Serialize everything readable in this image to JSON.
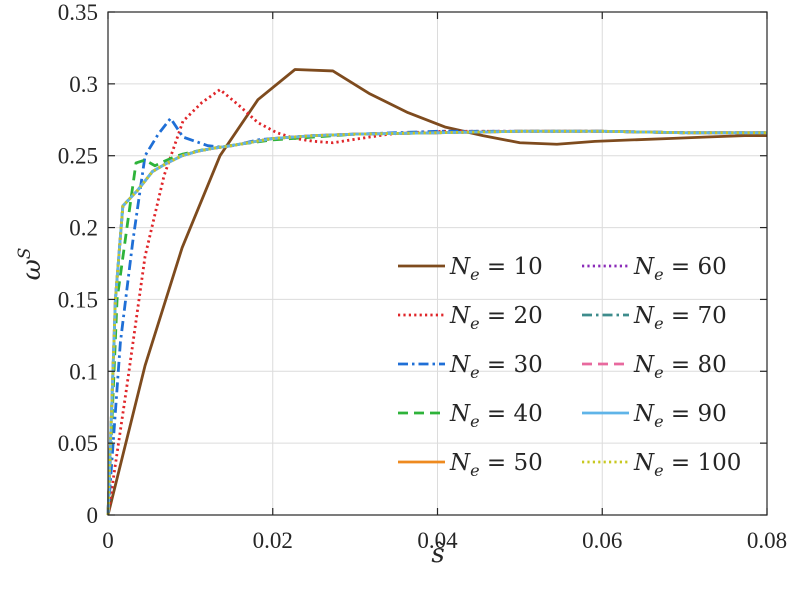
{
  "chart_data": {
    "type": "line",
    "title": "",
    "xlabel": "s̃",
    "ylabel": "ω^S",
    "xlim": [
      0,
      0.08
    ],
    "ylim": [
      0,
      0.35
    ],
    "xticks": [
      0,
      0.02,
      0.04,
      0.06,
      0.08
    ],
    "xtick_labels": [
      "0",
      "0.02",
      "0.04",
      "0.06",
      "0.08"
    ],
    "yticks": [
      0,
      0.05,
      0.1,
      0.15,
      0.2,
      0.25,
      0.3,
      0.35
    ],
    "ytick_labels": [
      "0",
      "0.05",
      "0.1",
      "0.15",
      "0.2",
      "0.25",
      "0.3",
      "0.35"
    ],
    "grid": true,
    "legend_placement": "lower-right",
    "legend_columns": 2,
    "series": [
      {
        "name": "N_e = 10",
        "label_var": "N",
        "label_sub": "e",
        "label_rest": " = 10",
        "color": "#7E4B1E",
        "dash": "solid",
        "x": [
          0,
          0.0045,
          0.009,
          0.0136,
          0.0182,
          0.0227,
          0.0273,
          0.0318,
          0.0364,
          0.0409,
          0.0455,
          0.05,
          0.0545,
          0.0591,
          0.0636,
          0.0682,
          0.0727,
          0.0773,
          0.08
        ],
        "y": [
          0,
          0.104,
          0.186,
          0.25,
          0.289,
          0.31,
          0.309,
          0.293,
          0.28,
          0.27,
          0.264,
          0.259,
          0.258,
          0.26,
          0.261,
          0.262,
          0.263,
          0.264,
          0.264
        ]
      },
      {
        "name": "N_e = 20",
        "label_var": "N",
        "label_sub": "e",
        "label_rest": " = 20",
        "color": "#E0262A",
        "dash": "dotted",
        "x": [
          0,
          0.0023,
          0.0045,
          0.0068,
          0.0091,
          0.0114,
          0.0136,
          0.0159,
          0.0182,
          0.0205,
          0.0227,
          0.025,
          0.0273,
          0.0295,
          0.0318,
          0.0341,
          0.0364,
          0.0409,
          0.05,
          0.06,
          0.07,
          0.08
        ],
        "y": [
          0,
          0.09,
          0.18,
          0.236,
          0.274,
          0.287,
          0.296,
          0.285,
          0.273,
          0.266,
          0.262,
          0.26,
          0.259,
          0.261,
          0.263,
          0.265,
          0.266,
          0.267,
          0.267,
          0.267,
          0.266,
          0.266
        ]
      },
      {
        "name": "N_e = 30",
        "label_var": "N",
        "label_sub": "e",
        "label_rest": " = 30",
        "color": "#1F6FD6",
        "dash": "dashdot",
        "x": [
          0,
          0.0015,
          0.003,
          0.0045,
          0.0061,
          0.0076,
          0.0091,
          0.0106,
          0.0121,
          0.0136,
          0.0152,
          0.0167,
          0.0182,
          0.02,
          0.025,
          0.03,
          0.04,
          0.05,
          0.06,
          0.07,
          0.08
        ],
        "y": [
          0,
          0.12,
          0.19,
          0.25,
          0.265,
          0.276,
          0.263,
          0.26,
          0.257,
          0.256,
          0.257,
          0.259,
          0.261,
          0.262,
          0.264,
          0.265,
          0.267,
          0.267,
          0.267,
          0.266,
          0.266
        ]
      },
      {
        "name": "N_e = 40",
        "label_var": "N",
        "label_sub": "e",
        "label_rest": " = 40",
        "color": "#2EB33A",
        "dash": "dashed",
        "x": [
          0,
          0.0011,
          0.0023,
          0.0034,
          0.0045,
          0.0057,
          0.0068,
          0.008,
          0.009,
          0.0114,
          0.0136,
          0.016,
          0.02,
          0.025,
          0.03,
          0.04,
          0.05,
          0.06,
          0.07,
          0.08
        ],
        "y": [
          0,
          0.15,
          0.2,
          0.245,
          0.247,
          0.243,
          0.246,
          0.249,
          0.251,
          0.254,
          0.256,
          0.258,
          0.261,
          0.263,
          0.265,
          0.266,
          0.267,
          0.267,
          0.266,
          0.266
        ]
      },
      {
        "name": "N_e = 50",
        "label_var": "N",
        "label_sub": "e",
        "label_rest": " = 50",
        "color": "#EE8A1F",
        "dash": "solid",
        "x": [
          0,
          0.0009,
          0.0018,
          0.0036,
          0.0054,
          0.0072,
          0.009,
          0.0108,
          0.0126,
          0.015,
          0.018,
          0.02,
          0.025,
          0.03,
          0.04,
          0.05,
          0.06,
          0.07,
          0.08
        ],
        "y": [
          0,
          0.15,
          0.215,
          0.226,
          0.239,
          0.245,
          0.25,
          0.253,
          0.255,
          0.257,
          0.26,
          0.262,
          0.264,
          0.265,
          0.266,
          0.267,
          0.267,
          0.266,
          0.266
        ]
      },
      {
        "name": "N_e = 60",
        "label_var": "N",
        "label_sub": "e",
        "label_rest": " = 60",
        "color": "#8A2BB8",
        "dash": "dotted",
        "x": [
          0,
          0.0009,
          0.0018,
          0.0036,
          0.0054,
          0.0072,
          0.009,
          0.0108,
          0.0126,
          0.015,
          0.018,
          0.02,
          0.025,
          0.03,
          0.04,
          0.05,
          0.06,
          0.07,
          0.08
        ],
        "y": [
          0,
          0.15,
          0.215,
          0.226,
          0.239,
          0.245,
          0.25,
          0.253,
          0.255,
          0.257,
          0.26,
          0.262,
          0.264,
          0.265,
          0.266,
          0.267,
          0.267,
          0.266,
          0.266
        ]
      },
      {
        "name": "N_e = 70",
        "label_var": "N",
        "label_sub": "e",
        "label_rest": " = 70",
        "color": "#3E8C8C",
        "dash": "dashdot",
        "x": [
          0,
          0.0009,
          0.0018,
          0.0036,
          0.0054,
          0.0072,
          0.009,
          0.0108,
          0.0126,
          0.015,
          0.018,
          0.02,
          0.025,
          0.03,
          0.04,
          0.05,
          0.06,
          0.07,
          0.08
        ],
        "y": [
          0,
          0.15,
          0.215,
          0.226,
          0.239,
          0.245,
          0.25,
          0.253,
          0.255,
          0.257,
          0.26,
          0.262,
          0.264,
          0.265,
          0.266,
          0.267,
          0.267,
          0.266,
          0.266
        ]
      },
      {
        "name": "N_e = 80",
        "label_var": "N",
        "label_sub": "e",
        "label_rest": " = 80",
        "color": "#E8699E",
        "dash": "dashed",
        "x": [
          0,
          0.0009,
          0.0018,
          0.0036,
          0.0054,
          0.0072,
          0.009,
          0.0108,
          0.0126,
          0.015,
          0.018,
          0.02,
          0.025,
          0.03,
          0.04,
          0.05,
          0.06,
          0.07,
          0.08
        ],
        "y": [
          0,
          0.15,
          0.215,
          0.226,
          0.239,
          0.245,
          0.25,
          0.253,
          0.255,
          0.257,
          0.26,
          0.262,
          0.264,
          0.265,
          0.266,
          0.267,
          0.267,
          0.266,
          0.266
        ]
      },
      {
        "name": "N_e = 90",
        "label_var": "N",
        "label_sub": "e",
        "label_rest": " = 90",
        "color": "#5FB4E8",
        "dash": "solid",
        "x": [
          0,
          0.0009,
          0.0018,
          0.0036,
          0.0054,
          0.0072,
          0.009,
          0.0108,
          0.0126,
          0.015,
          0.018,
          0.02,
          0.025,
          0.03,
          0.04,
          0.05,
          0.06,
          0.07,
          0.08
        ],
        "y": [
          0,
          0.15,
          0.215,
          0.226,
          0.239,
          0.245,
          0.25,
          0.253,
          0.255,
          0.257,
          0.26,
          0.262,
          0.264,
          0.265,
          0.266,
          0.267,
          0.267,
          0.266,
          0.266
        ]
      },
      {
        "name": "N_e = 100",
        "label_var": "N",
        "label_sub": "e",
        "label_rest": " = 100",
        "color": "#C8C820",
        "dash": "dotted",
        "x": [
          0,
          0.0009,
          0.0018,
          0.0036,
          0.0054,
          0.0072,
          0.009,
          0.0108,
          0.0126,
          0.015,
          0.018,
          0.02,
          0.025,
          0.03,
          0.04,
          0.05,
          0.06,
          0.07,
          0.08
        ],
        "y": [
          0,
          0.15,
          0.215,
          0.226,
          0.239,
          0.245,
          0.25,
          0.253,
          0.255,
          0.257,
          0.26,
          0.262,
          0.264,
          0.265,
          0.266,
          0.267,
          0.267,
          0.266,
          0.266
        ]
      }
    ]
  }
}
